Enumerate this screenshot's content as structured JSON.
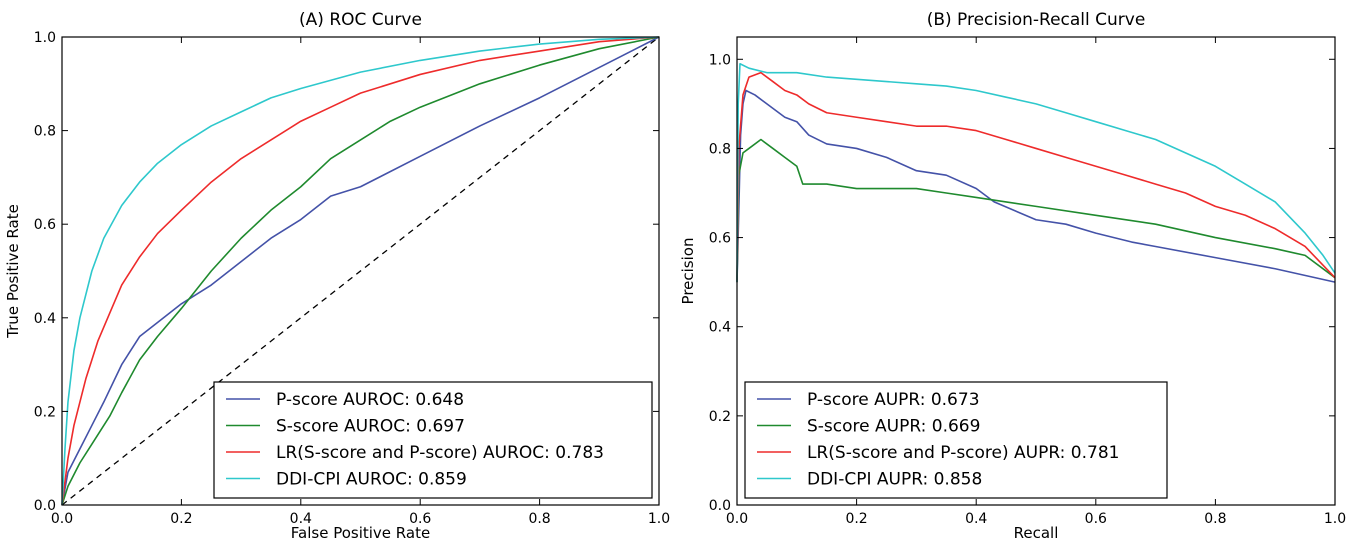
{
  "chart_data": [
    {
      "type": "line",
      "title": "(A) ROC Curve",
      "xlabel": "False Positive Rate",
      "ylabel": "True Positive Rate",
      "xlim": [
        0,
        1
      ],
      "ylim": [
        0,
        1
      ],
      "xticks": [
        "0.0",
        "0.2",
        "0.4",
        "0.6",
        "0.8",
        "1.0"
      ],
      "yticks": [
        "0.0",
        "0.2",
        "0.4",
        "0.6",
        "0.8",
        "1.0"
      ],
      "legend_position": "lower-right",
      "grid": false,
      "reference_line": {
        "style": "dashed",
        "color": "#000000",
        "points": [
          [
            0,
            0
          ],
          [
            1,
            1
          ]
        ]
      },
      "series": [
        {
          "name": "P-score AUROC: 0.648",
          "color": "#4452a8",
          "points": [
            [
              0,
              0
            ],
            [
              0.01,
              0.07
            ],
            [
              0.03,
              0.12
            ],
            [
              0.05,
              0.17
            ],
            [
              0.07,
              0.22
            ],
            [
              0.1,
              0.3
            ],
            [
              0.13,
              0.36
            ],
            [
              0.16,
              0.39
            ],
            [
              0.2,
              0.43
            ],
            [
              0.25,
              0.47
            ],
            [
              0.3,
              0.52
            ],
            [
              0.35,
              0.57
            ],
            [
              0.4,
              0.61
            ],
            [
              0.45,
              0.66
            ],
            [
              0.5,
              0.68
            ],
            [
              0.6,
              0.745
            ],
            [
              0.7,
              0.81
            ],
            [
              0.8,
              0.87
            ],
            [
              0.9,
              0.935
            ],
            [
              1,
              1
            ]
          ]
        },
        {
          "name": "S-score AUROC: 0.697",
          "color": "#1f8a2e",
          "points": [
            [
              0,
              0
            ],
            [
              0.01,
              0.04
            ],
            [
              0.03,
              0.09
            ],
            [
              0.05,
              0.13
            ],
            [
              0.08,
              0.19
            ],
            [
              0.1,
              0.24
            ],
            [
              0.13,
              0.31
            ],
            [
              0.16,
              0.36
            ],
            [
              0.2,
              0.42
            ],
            [
              0.25,
              0.5
            ],
            [
              0.3,
              0.57
            ],
            [
              0.35,
              0.63
            ],
            [
              0.4,
              0.68
            ],
            [
              0.45,
              0.74
            ],
            [
              0.5,
              0.78
            ],
            [
              0.55,
              0.82
            ],
            [
              0.6,
              0.85
            ],
            [
              0.7,
              0.9
            ],
            [
              0.8,
              0.94
            ],
            [
              0.9,
              0.975
            ],
            [
              1,
              1
            ]
          ]
        },
        {
          "name": "LR(S-score and P-score) AUROC: 0.783",
          "color": "#ee2b2b",
          "points": [
            [
              0,
              0
            ],
            [
              0.01,
              0.1
            ],
            [
              0.02,
              0.17
            ],
            [
              0.04,
              0.27
            ],
            [
              0.06,
              0.35
            ],
            [
              0.08,
              0.41
            ],
            [
              0.1,
              0.47
            ],
            [
              0.13,
              0.53
            ],
            [
              0.16,
              0.58
            ],
            [
              0.2,
              0.63
            ],
            [
              0.25,
              0.69
            ],
            [
              0.3,
              0.74
            ],
            [
              0.35,
              0.78
            ],
            [
              0.4,
              0.82
            ],
            [
              0.45,
              0.85
            ],
            [
              0.5,
              0.88
            ],
            [
              0.6,
              0.92
            ],
            [
              0.7,
              0.95
            ],
            [
              0.8,
              0.97
            ],
            [
              0.9,
              0.99
            ],
            [
              1,
              1
            ]
          ]
        },
        {
          "name": "DDI-CPI AUROC: 0.859",
          "color": "#2ec8cc",
          "points": [
            [
              0,
              0
            ],
            [
              0.005,
              0.12
            ],
            [
              0.01,
              0.22
            ],
            [
              0.02,
              0.33
            ],
            [
              0.03,
              0.4
            ],
            [
              0.05,
              0.5
            ],
            [
              0.07,
              0.57
            ],
            [
              0.1,
              0.64
            ],
            [
              0.13,
              0.69
            ],
            [
              0.16,
              0.73
            ],
            [
              0.2,
              0.77
            ],
            [
              0.25,
              0.81
            ],
            [
              0.3,
              0.84
            ],
            [
              0.35,
              0.87
            ],
            [
              0.4,
              0.89
            ],
            [
              0.5,
              0.925
            ],
            [
              0.6,
              0.95
            ],
            [
              0.7,
              0.97
            ],
            [
              0.8,
              0.985
            ],
            [
              0.9,
              0.995
            ],
            [
              1,
              1
            ]
          ]
        }
      ]
    },
    {
      "type": "line",
      "title": "(B) Precision-Recall Curve",
      "xlabel": "Recall",
      "ylabel": "Precision",
      "xlim": [
        0,
        1
      ],
      "ylim": [
        0,
        1.05
      ],
      "xticks": [
        "0.0",
        "0.2",
        "0.4",
        "0.6",
        "0.8",
        "1.0"
      ],
      "yticks": [
        "0.0",
        "0.2",
        "0.4",
        "0.6",
        "0.8",
        "1.0"
      ],
      "legend_position": "lower-left",
      "grid": false,
      "series": [
        {
          "name": "P-score AUPR: 0.673",
          "color": "#4452a8",
          "points": [
            [
              0,
              0.5
            ],
            [
              0.003,
              0.66
            ],
            [
              0.006,
              0.83
            ],
            [
              0.01,
              0.9
            ],
            [
              0.015,
              0.93
            ],
            [
              0.03,
              0.92
            ],
            [
              0.05,
              0.9
            ],
            [
              0.08,
              0.87
            ],
            [
              0.1,
              0.86
            ],
            [
              0.12,
              0.83
            ],
            [
              0.15,
              0.81
            ],
            [
              0.2,
              0.8
            ],
            [
              0.25,
              0.78
            ],
            [
              0.3,
              0.75
            ],
            [
              0.35,
              0.74
            ],
            [
              0.4,
              0.71
            ],
            [
              0.43,
              0.68
            ],
            [
              0.5,
              0.64
            ],
            [
              0.55,
              0.63
            ],
            [
              0.6,
              0.61
            ],
            [
              0.66,
              0.59
            ],
            [
              0.7,
              0.58
            ],
            [
              0.8,
              0.555
            ],
            [
              0.9,
              0.53
            ],
            [
              1,
              0.5
            ]
          ]
        },
        {
          "name": "S-score AUPR: 0.669",
          "color": "#1f8a2e",
          "points": [
            [
              0,
              0.5
            ],
            [
              0.003,
              0.74
            ],
            [
              0.01,
              0.79
            ],
            [
              0.02,
              0.8
            ],
            [
              0.04,
              0.82
            ],
            [
              0.06,
              0.8
            ],
            [
              0.08,
              0.78
            ],
            [
              0.1,
              0.76
            ],
            [
              0.11,
              0.72
            ],
            [
              0.15,
              0.72
            ],
            [
              0.2,
              0.71
            ],
            [
              0.25,
              0.71
            ],
            [
              0.3,
              0.71
            ],
            [
              0.35,
              0.7
            ],
            [
              0.4,
              0.69
            ],
            [
              0.45,
              0.68
            ],
            [
              0.5,
              0.67
            ],
            [
              0.6,
              0.65
            ],
            [
              0.7,
              0.63
            ],
            [
              0.8,
              0.6
            ],
            [
              0.9,
              0.575
            ],
            [
              0.95,
              0.56
            ],
            [
              1,
              0.51
            ]
          ]
        },
        {
          "name": "LR(S-score and P-score) AUPR: 0.781",
          "color": "#ee2b2b",
          "points": [
            [
              0,
              0.5
            ],
            [
              0.003,
              0.8
            ],
            [
              0.01,
              0.92
            ],
            [
              0.02,
              0.96
            ],
            [
              0.04,
              0.97
            ],
            [
              0.06,
              0.95
            ],
            [
              0.08,
              0.93
            ],
            [
              0.1,
              0.92
            ],
            [
              0.12,
              0.9
            ],
            [
              0.15,
              0.88
            ],
            [
              0.2,
              0.87
            ],
            [
              0.25,
              0.86
            ],
            [
              0.3,
              0.85
            ],
            [
              0.35,
              0.85
            ],
            [
              0.4,
              0.84
            ],
            [
              0.45,
              0.82
            ],
            [
              0.5,
              0.8
            ],
            [
              0.55,
              0.78
            ],
            [
              0.6,
              0.76
            ],
            [
              0.65,
              0.74
            ],
            [
              0.7,
              0.72
            ],
            [
              0.75,
              0.7
            ],
            [
              0.8,
              0.67
            ],
            [
              0.85,
              0.65
            ],
            [
              0.9,
              0.62
            ],
            [
              0.95,
              0.58
            ],
            [
              1,
              0.51
            ]
          ]
        },
        {
          "name": "DDI-CPI AUPR: 0.858",
          "color": "#2ec8cc",
          "points": [
            [
              0,
              0.5
            ],
            [
              0.002,
              0.9
            ],
            [
              0.005,
              0.99
            ],
            [
              0.02,
              0.98
            ],
            [
              0.05,
              0.97
            ],
            [
              0.1,
              0.97
            ],
            [
              0.15,
              0.96
            ],
            [
              0.2,
              0.955
            ],
            [
              0.25,
              0.95
            ],
            [
              0.3,
              0.945
            ],
            [
              0.35,
              0.94
            ],
            [
              0.4,
              0.93
            ],
            [
              0.45,
              0.915
            ],
            [
              0.5,
              0.9
            ],
            [
              0.55,
              0.88
            ],
            [
              0.6,
              0.86
            ],
            [
              0.65,
              0.84
            ],
            [
              0.7,
              0.82
            ],
            [
              0.75,
              0.79
            ],
            [
              0.8,
              0.76
            ],
            [
              0.85,
              0.72
            ],
            [
              0.9,
              0.68
            ],
            [
              0.95,
              0.61
            ],
            [
              0.98,
              0.56
            ],
            [
              1,
              0.52
            ]
          ]
        }
      ]
    }
  ]
}
